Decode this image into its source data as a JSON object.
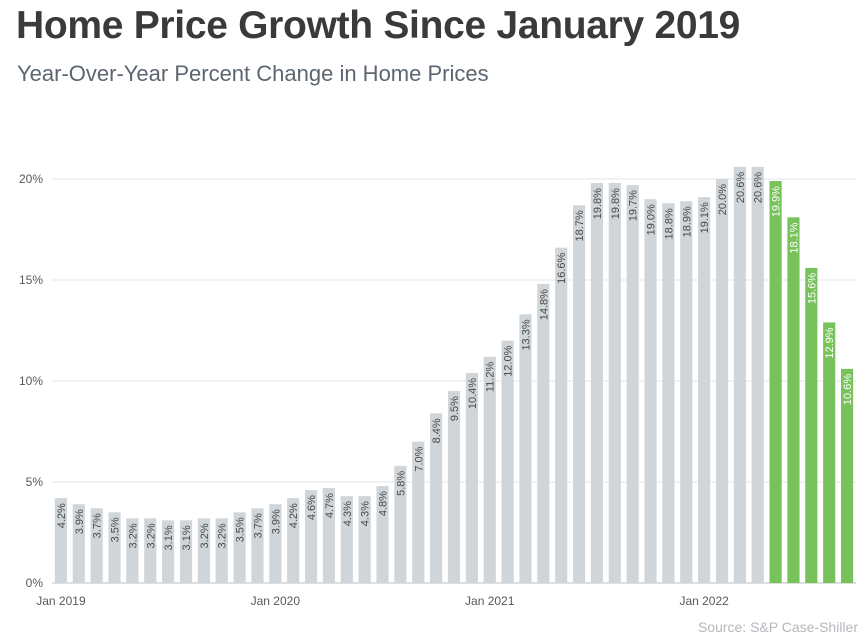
{
  "header": {
    "title": "Home Price Growth Since January 2019",
    "subtitle": "Year-Over-Year Percent Change in Home Prices"
  },
  "footer": {
    "source": "Source: S&P Case-Shiller"
  },
  "colors": {
    "bar_default": "#cfd5d8",
    "bar_highlight": "#77c25a",
    "grid": "#e6e6e6",
    "axis_text": "#595959",
    "label_dark": "#4a4a4a",
    "label_light": "#ffffff"
  },
  "chart_data": {
    "type": "bar",
    "title": "Home Price Growth Since January 2019",
    "subtitle": "Year-Over-Year Percent Change in Home Prices",
    "ylim": [
      0,
      20
    ],
    "yticks": [
      0,
      5,
      10,
      15,
      20
    ],
    "ytick_labels": [
      "0%",
      "5%",
      "10%",
      "15%",
      "20%"
    ],
    "grid": true,
    "x_tick_labels": [
      {
        "index": 0,
        "label": "Jan 2019"
      },
      {
        "index": 12,
        "label": "Jan 2020"
      },
      {
        "index": 24,
        "label": "Jan 2021"
      },
      {
        "index": 36,
        "label": "Jan 2022"
      }
    ],
    "values": [
      4.2,
      3.9,
      3.7,
      3.5,
      3.2,
      3.2,
      3.1,
      3.1,
      3.2,
      3.2,
      3.5,
      3.7,
      3.9,
      4.2,
      4.6,
      4.7,
      4.3,
      4.3,
      4.8,
      5.8,
      7.0,
      8.4,
      9.5,
      10.4,
      11.2,
      12.0,
      13.3,
      14.8,
      16.6,
      18.7,
      19.8,
      19.8,
      19.7,
      19.0,
      18.8,
      18.9,
      19.1,
      20.0,
      20.6,
      20.6,
      19.9,
      18.1,
      15.6,
      12.9,
      10.6
    ],
    "labels": [
      "4.2%",
      "3.9%",
      "3.7%",
      "3.5%",
      "3.2%",
      "3.2%",
      "3.1%",
      "3.1%",
      "3.2%",
      "3.2%",
      "3.5%",
      "3.7%",
      "3.9%",
      "4.2%",
      "4.6%",
      "4.7%",
      "4.3%",
      "4.3%",
      "4.8%",
      "5.8%",
      "7.0%",
      "8.4%",
      "9.5%",
      "10.4%",
      "11.2%",
      "12.0%",
      "13.3%",
      "14.8%",
      "16.6%",
      "18.7%",
      "19.8%",
      "19.8%",
      "19.7%",
      "19.0%",
      "18.8%",
      "18.9%",
      "19.1%",
      "20.0%",
      "20.6%",
      "20.6%",
      "19.9%",
      "18.1%",
      "15.6%",
      "12.9%",
      "10.6%"
    ],
    "highlight_from_index": 40
  }
}
